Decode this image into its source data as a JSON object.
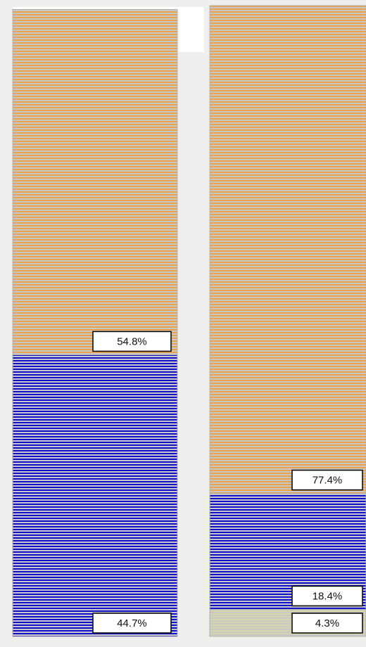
{
  "chart_data": {
    "type": "stacked_bar",
    "categories": [
      null,
      null
    ],
    "series": [
      {
        "color": "#d8d3a8",
        "values": [
          null,
          4.3
        ],
        "value_labels": [
          null,
          "4.3%"
        ]
      },
      {
        "color": "#1010cc",
        "values": [
          44.7,
          18.4
        ],
        "value_labels": [
          "44.7%",
          "18.4%"
        ]
      },
      {
        "color": "#eaa24a",
        "values": [
          54.8,
          77.4
        ],
        "value_labels": [
          "54.8%",
          "77.4%"
        ]
      }
    ]
  }
}
